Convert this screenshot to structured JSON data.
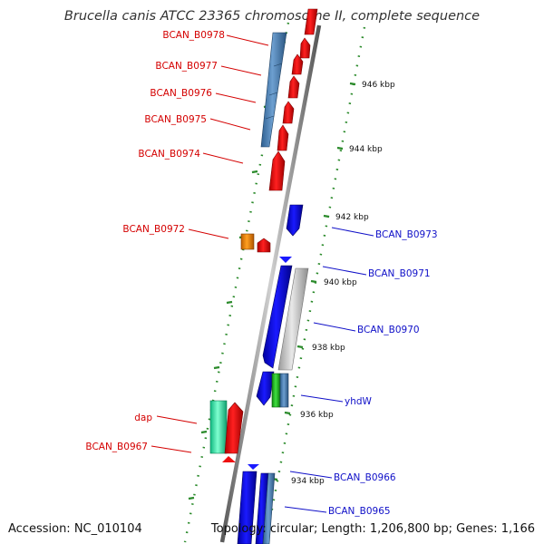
{
  "title": "Brucella canis ATCC 23365 chromosome II, complete sequence",
  "accession": "Accession: NC_010104",
  "summary": "Topology: circular; Length: 1,206,800 bp; Genes: 1,166",
  "colors": {
    "forward_label": "#d40000",
    "reverse_label": "#1010c8",
    "backbone": "#8a8a8a",
    "tick": "#2a8a2a"
  },
  "ticks": [
    "946 kbp",
    "944 kbp",
    "942 kbp",
    "940 kbp",
    "938 kbp",
    "936 kbp",
    "934 kbp"
  ],
  "forward_genes": [
    "BCAN_B0978",
    "BCAN_B0977",
    "BCAN_B0976",
    "BCAN_B0975",
    "BCAN_B0974",
    "BCAN_B0972",
    "dap",
    "BCAN_B0967"
  ],
  "reverse_genes": [
    "BCAN_B0973",
    "BCAN_B0971",
    "BCAN_B0970",
    "yhdW",
    "BCAN_B0966",
    "BCAN_B0965"
  ]
}
